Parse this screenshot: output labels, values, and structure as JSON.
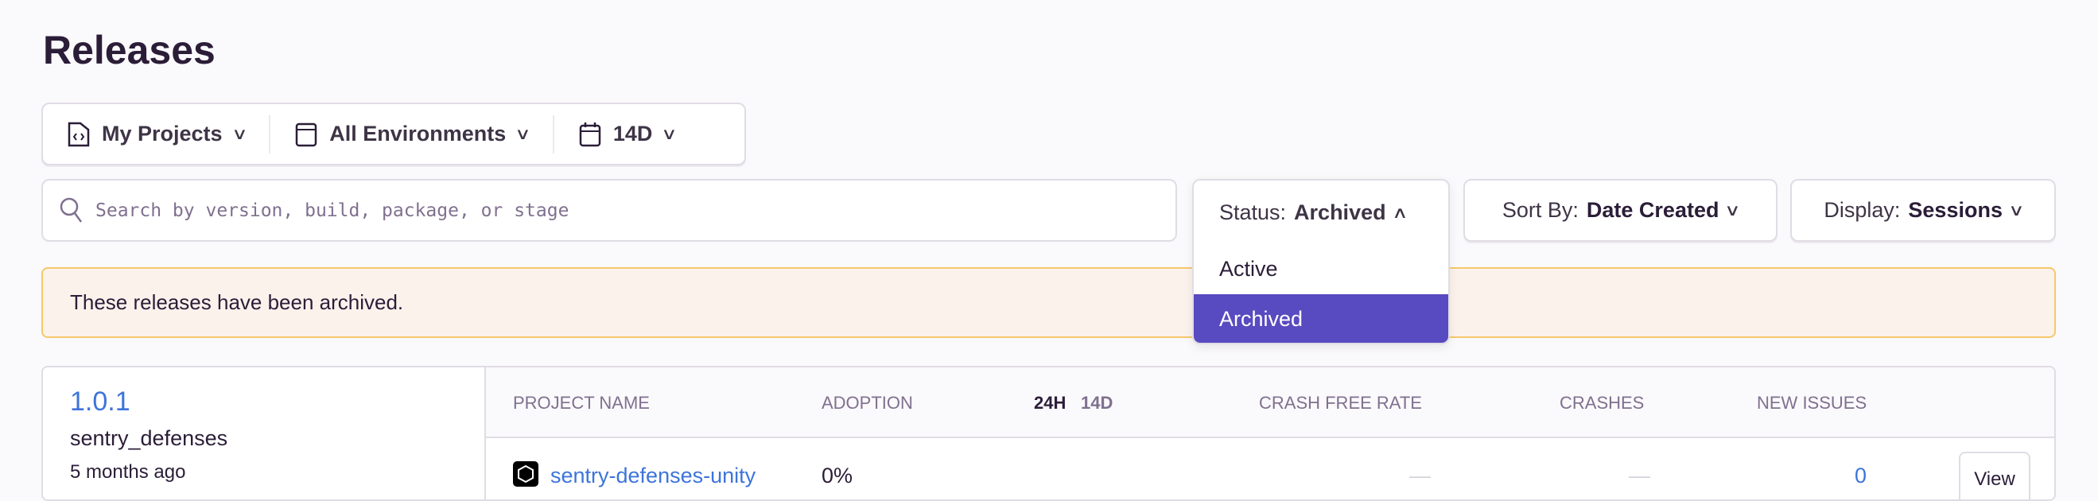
{
  "page": {
    "title": "Releases"
  },
  "filters": {
    "projects": "My Projects",
    "environments": "All Environments",
    "period": "14D"
  },
  "search": {
    "placeholder": "Search by version, build, package, or stage"
  },
  "status": {
    "label": "Status:",
    "value": "Archived",
    "options": [
      "Active",
      "Archived"
    ]
  },
  "sort": {
    "label": "Sort By:",
    "value": "Date Created"
  },
  "display": {
    "label": "Display:",
    "value": "Sessions"
  },
  "alert": {
    "text": "These releases have been archived."
  },
  "release": {
    "version": "1.0.1",
    "project": "sentry_defenses",
    "created": "5 months ago",
    "columns": {
      "project_name": "Project Name",
      "adoption": "Adoption",
      "h24": "24H",
      "d14": "14D",
      "crash_free_rate": "Crash Free Rate",
      "crashes": "Crashes",
      "new_issues": "New Issues"
    },
    "rows": [
      {
        "project": "sentry-defenses-unity",
        "adoption": "0%",
        "crash_free_rate": "—",
        "crashes": "—",
        "new_issues": "0",
        "action": "View"
      }
    ]
  },
  "colors": {
    "accent": "#584ac0",
    "link": "#3d74db",
    "alert_bg": "#fbf2ec",
    "alert_border": "#f5c86b"
  }
}
